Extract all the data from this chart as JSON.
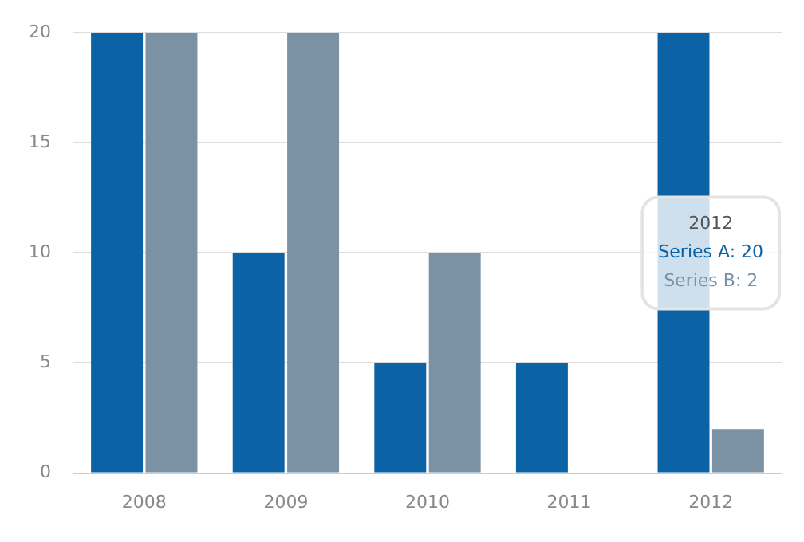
{
  "chart_data": {
    "type": "bar",
    "categories": [
      "2008",
      "2009",
      "2010",
      "2011",
      "2012"
    ],
    "series": [
      {
        "color": "#0b62a4",
        "values": [
          20,
          10,
          5,
          5,
          20
        ]
      },
      {
        "color": "#7a92a3",
        "values": [
          20,
          20,
          10,
          0,
          2
        ]
      }
    ],
    "ylim": [
      0,
      20
    ],
    "yticks": [
      0,
      5,
      10,
      15,
      20
    ],
    "grid": "y",
    "legend": false,
    "annotations": [
      "2012",
      "Series A: 20",
      "Series B: 2"
    ]
  }
}
